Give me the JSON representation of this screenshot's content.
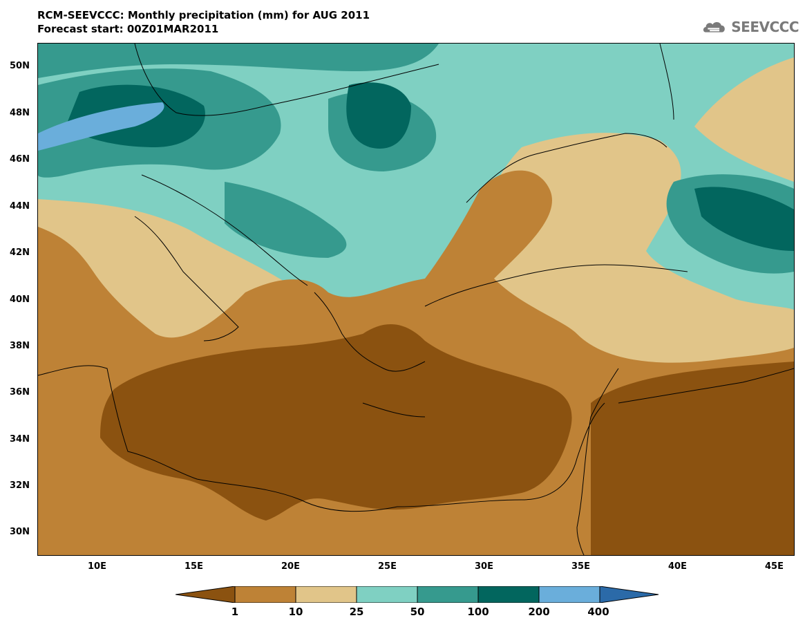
{
  "title": {
    "line1": "RCM-SEEVCCC: Monthly precipitation (mm) for AUG 2011",
    "line2": "Forecast start: 00Z01MAR2011"
  },
  "logo": {
    "icon": "cloud-icon",
    "text": "SEEVCCC"
  },
  "map": {
    "lon_range": [
      7,
      46
    ],
    "lat_range": [
      29,
      51
    ],
    "lon_ticks": [
      "10E",
      "15E",
      "20E",
      "25E",
      "30E",
      "35E",
      "40E",
      "45E"
    ],
    "lat_ticks": [
      "50N",
      "48N",
      "46N",
      "44N",
      "42N",
      "40N",
      "38N",
      "36N",
      "34N",
      "32N",
      "30N"
    ]
  },
  "legend": {
    "labels": [
      "1",
      "10",
      "25",
      "50",
      "100",
      "200",
      "400"
    ],
    "colors": [
      "#8b5210",
      "#be8236",
      "#e1c589",
      "#7fd0c2",
      "#369a8e",
      "#02665e",
      "#6aaedb",
      "#2b6aa8"
    ]
  }
}
